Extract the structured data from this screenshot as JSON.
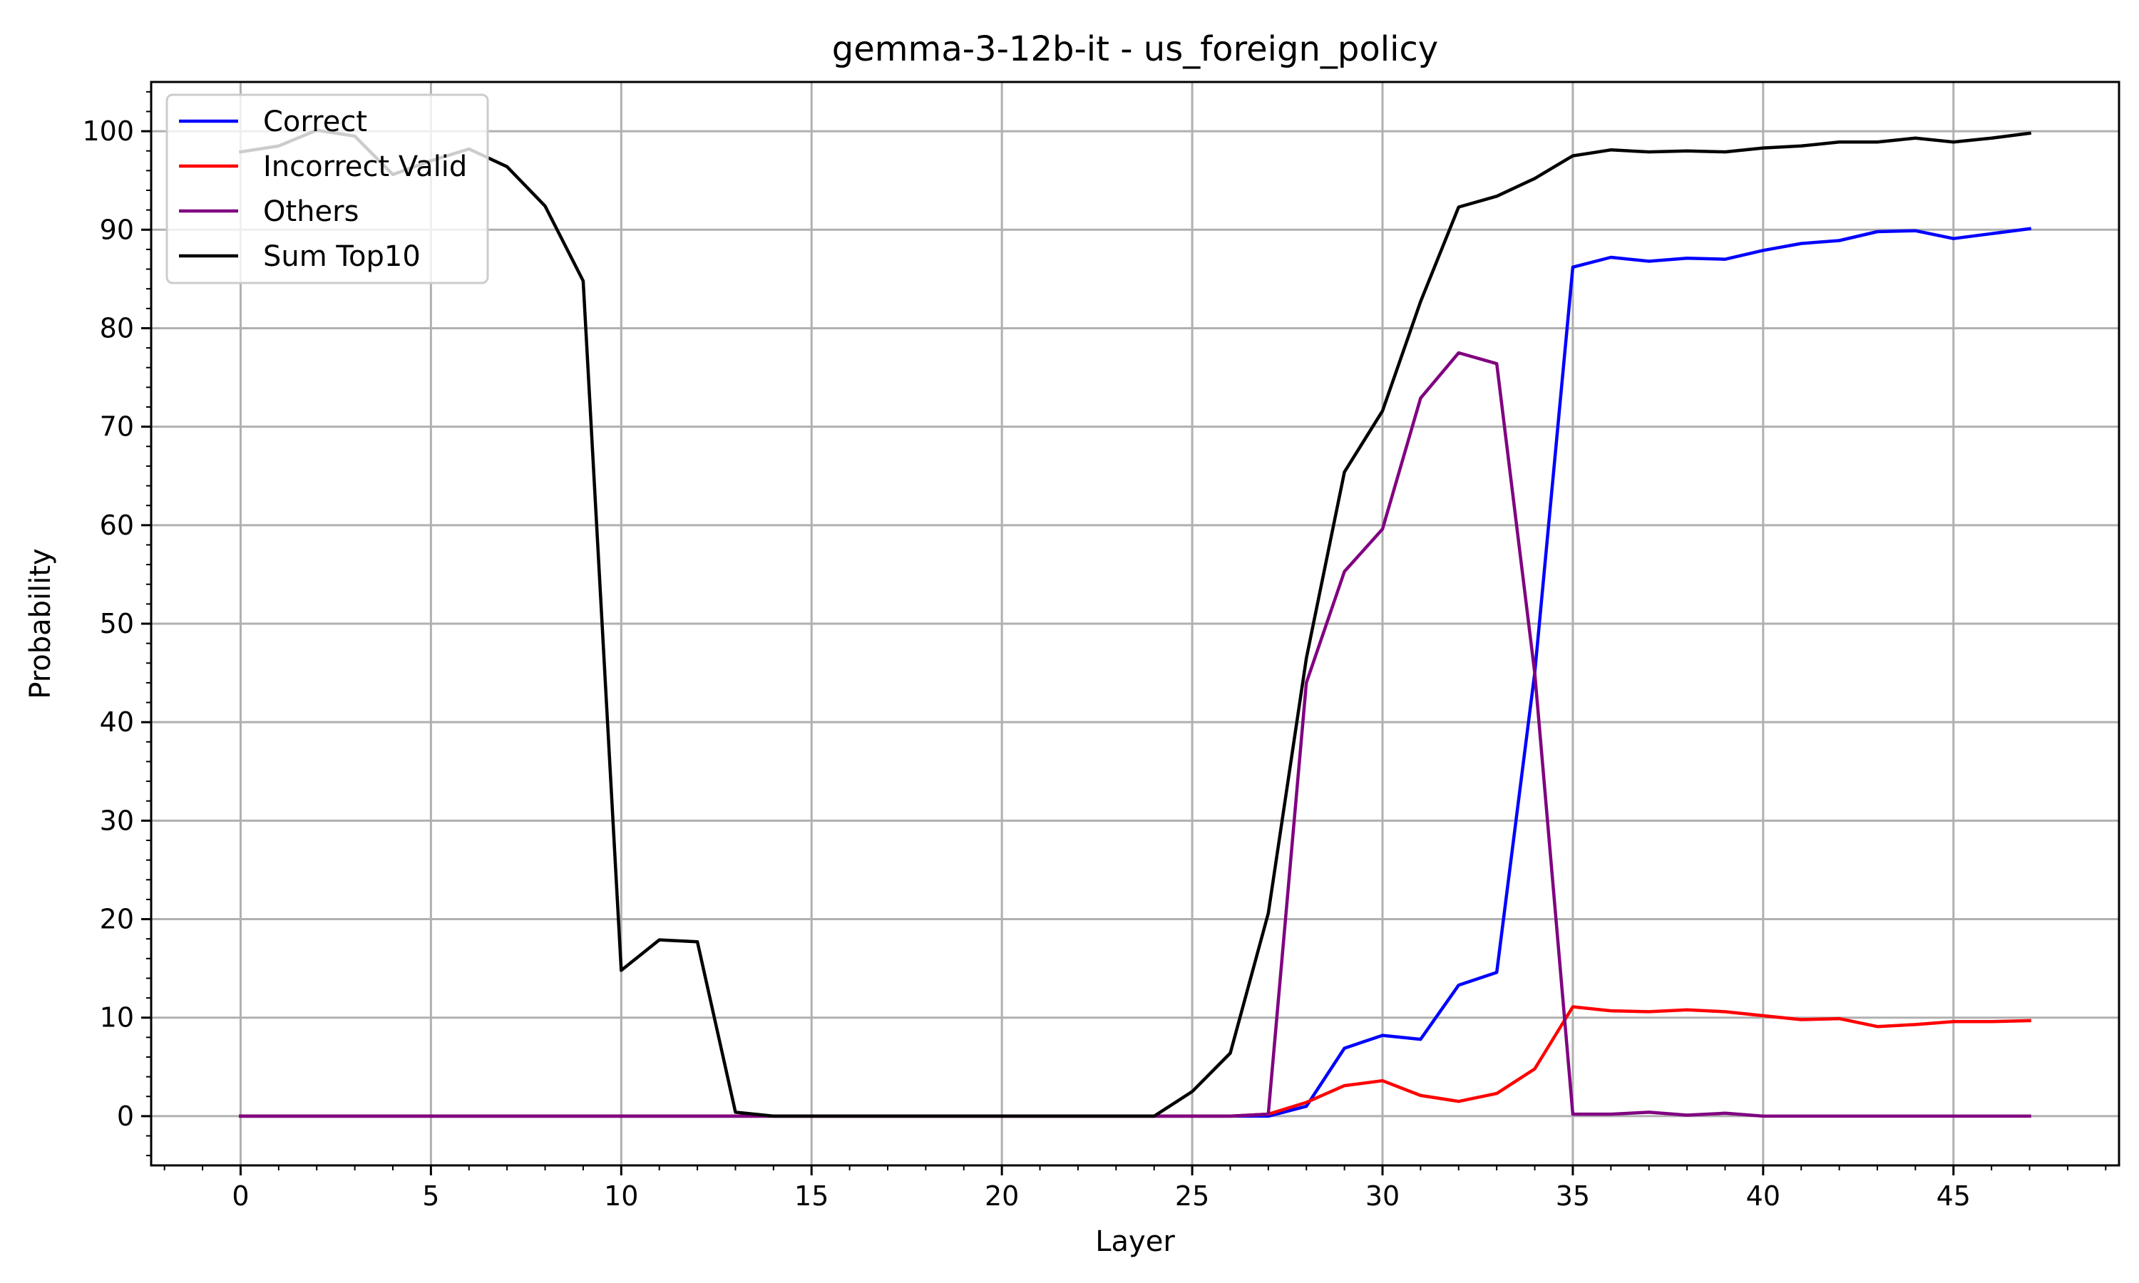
{
  "chart_data": {
    "type": "line",
    "title": "gemma-3-12b-it - us_foreign_policy",
    "xlabel": "Layer",
    "ylabel": "Probability",
    "xlim": [
      -2.35,
      49.35
    ],
    "ylim": [
      -5,
      105
    ],
    "xticks": [
      0,
      5,
      10,
      15,
      20,
      25,
      30,
      35,
      40,
      45
    ],
    "yticks": [
      0,
      10,
      20,
      30,
      40,
      50,
      60,
      70,
      80,
      90,
      100
    ],
    "grid": true,
    "legend_position": "top-left",
    "x": [
      0,
      1,
      2,
      3,
      4,
      5,
      6,
      7,
      8,
      9,
      10,
      11,
      12,
      13,
      14,
      15,
      16,
      17,
      18,
      19,
      20,
      21,
      22,
      23,
      24,
      25,
      26,
      27,
      28,
      29,
      30,
      31,
      32,
      33,
      34,
      35,
      36,
      37,
      38,
      39,
      40,
      41,
      42,
      43,
      44,
      45,
      46,
      47
    ],
    "series": [
      {
        "name": "Correct",
        "color": "#0000ff",
        "values": [
          0,
          0,
          0,
          0,
          0,
          0,
          0,
          0,
          0,
          0,
          0,
          0,
          0,
          0,
          0,
          0,
          0,
          0,
          0,
          0,
          0,
          0,
          0,
          0,
          0,
          0,
          0,
          0,
          1,
          6.9,
          8.2,
          7.8,
          13.3,
          14.6,
          45,
          86.2,
          87.2,
          86.8,
          87.1,
          87.0,
          87.9,
          88.6,
          88.9,
          89.8,
          89.9,
          89.1,
          89.6,
          90.1
        ]
      },
      {
        "name": "Incorrect Valid",
        "color": "#ff0000",
        "values": [
          0,
          0,
          0,
          0,
          0,
          0,
          0,
          0,
          0,
          0,
          0,
          0,
          0,
          0,
          0,
          0,
          0,
          0,
          0,
          0,
          0,
          0,
          0,
          0,
          0,
          0,
          0,
          0.2,
          1.4,
          3.1,
          3.6,
          2.1,
          1.5,
          2.3,
          4.8,
          11.1,
          10.7,
          10.6,
          10.8,
          10.6,
          10.2,
          9.8,
          9.9,
          9.1,
          9.3,
          9.6,
          9.6,
          9.7
        ]
      },
      {
        "name": "Others",
        "color": "#800080",
        "values": [
          0,
          0,
          0,
          0,
          0,
          0,
          0,
          0,
          0,
          0,
          0,
          0,
          0,
          0,
          0,
          0,
          0,
          0,
          0,
          0,
          0,
          0,
          0,
          0,
          0,
          0,
          0,
          0.2,
          44,
          55.3,
          59.6,
          72.9,
          77.5,
          76.4,
          45,
          0.2,
          0.2,
          0.4,
          0.1,
          0.3,
          0,
          0,
          0,
          0,
          0,
          0,
          0,
          0
        ]
      },
      {
        "name": "Sum Top10",
        "color": "#000000",
        "values": [
          97.9,
          98.5,
          100.1,
          99.5,
          95.6,
          97,
          98.2,
          96.4,
          92.4,
          84.8,
          14.8,
          17.9,
          17.7,
          0.4,
          0,
          0,
          0,
          0,
          0,
          0,
          0,
          0,
          0,
          0,
          0,
          2.5,
          6.4,
          20.6,
          46.5,
          65.4,
          71.6,
          82.7,
          92.3,
          93.4,
          95.2,
          97.5,
          98.1,
          97.9,
          98.0,
          97.9,
          98.3,
          98.5,
          98.9,
          98.9,
          99.3,
          98.9,
          99.3,
          99.8
        ]
      }
    ]
  }
}
